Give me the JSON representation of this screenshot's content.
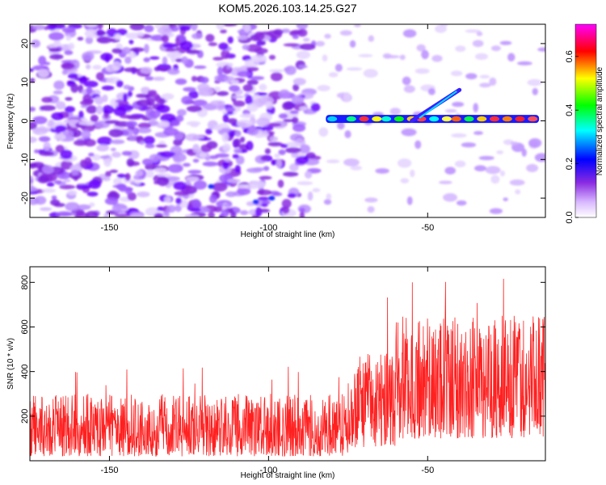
{
  "title": "KOM5.2026.103.14.25.G27",
  "chart_data": [
    {
      "type": "heatmap",
      "name": "spectrogram",
      "xlabel": "Height of straight line (km)",
      "ylabel": "Frequency (Hz)",
      "xlim": [
        -175,
        -13
      ],
      "ylim": [
        -25,
        25
      ],
      "xticks": [
        -150,
        -100,
        -50
      ],
      "yticks": [
        -20,
        -10,
        0,
        10,
        20
      ],
      "colorbar": {
        "label": "Normalized spectral amplitude",
        "range": [
          0,
          0.72
        ],
        "ticks": [
          0.0,
          0.2,
          0.4,
          0.6
        ],
        "colormap": [
          "#ffffff",
          "#c8a8ff",
          "#8a2be2",
          "#0000ff",
          "#00ffff",
          "#00ff00",
          "#ffff00",
          "#ff0000",
          "#ff00ff"
        ]
      },
      "features": {
        "noise_region": "x from -175 to -85, scattered purple blobs across all frequencies",
        "signal_band": {
          "x_start": -82,
          "x_end": -15,
          "frequency_hz": 0.5
        },
        "signal_branch": {
          "x_start": -55,
          "x_end": -40,
          "frequency_start_hz": 0,
          "frequency_end_hz": 8
        }
      }
    },
    {
      "type": "line",
      "name": "snr",
      "xlabel": "Height of straight line (km)",
      "ylabel": "SNR (10 * v/v)",
      "xlim": [
        -175,
        -13
      ],
      "ylim": [
        0,
        870
      ],
      "xticks": [
        -150,
        -100,
        -50
      ],
      "yticks": [
        200,
        400,
        600,
        800
      ],
      "color": "#ff2020",
      "series_summary": [
        {
          "x_range": [
            -175,
            -75
          ],
          "typical_min": 20,
          "typical_max": 300,
          "peak": 435
        },
        {
          "x_range": [
            -75,
            -60
          ],
          "typical_min": 60,
          "typical_max": 480,
          "peak": 810
        },
        {
          "x_range": [
            -60,
            -13
          ],
          "typical_min": 100,
          "typical_max": 650,
          "peak": 860
        }
      ]
    }
  ]
}
